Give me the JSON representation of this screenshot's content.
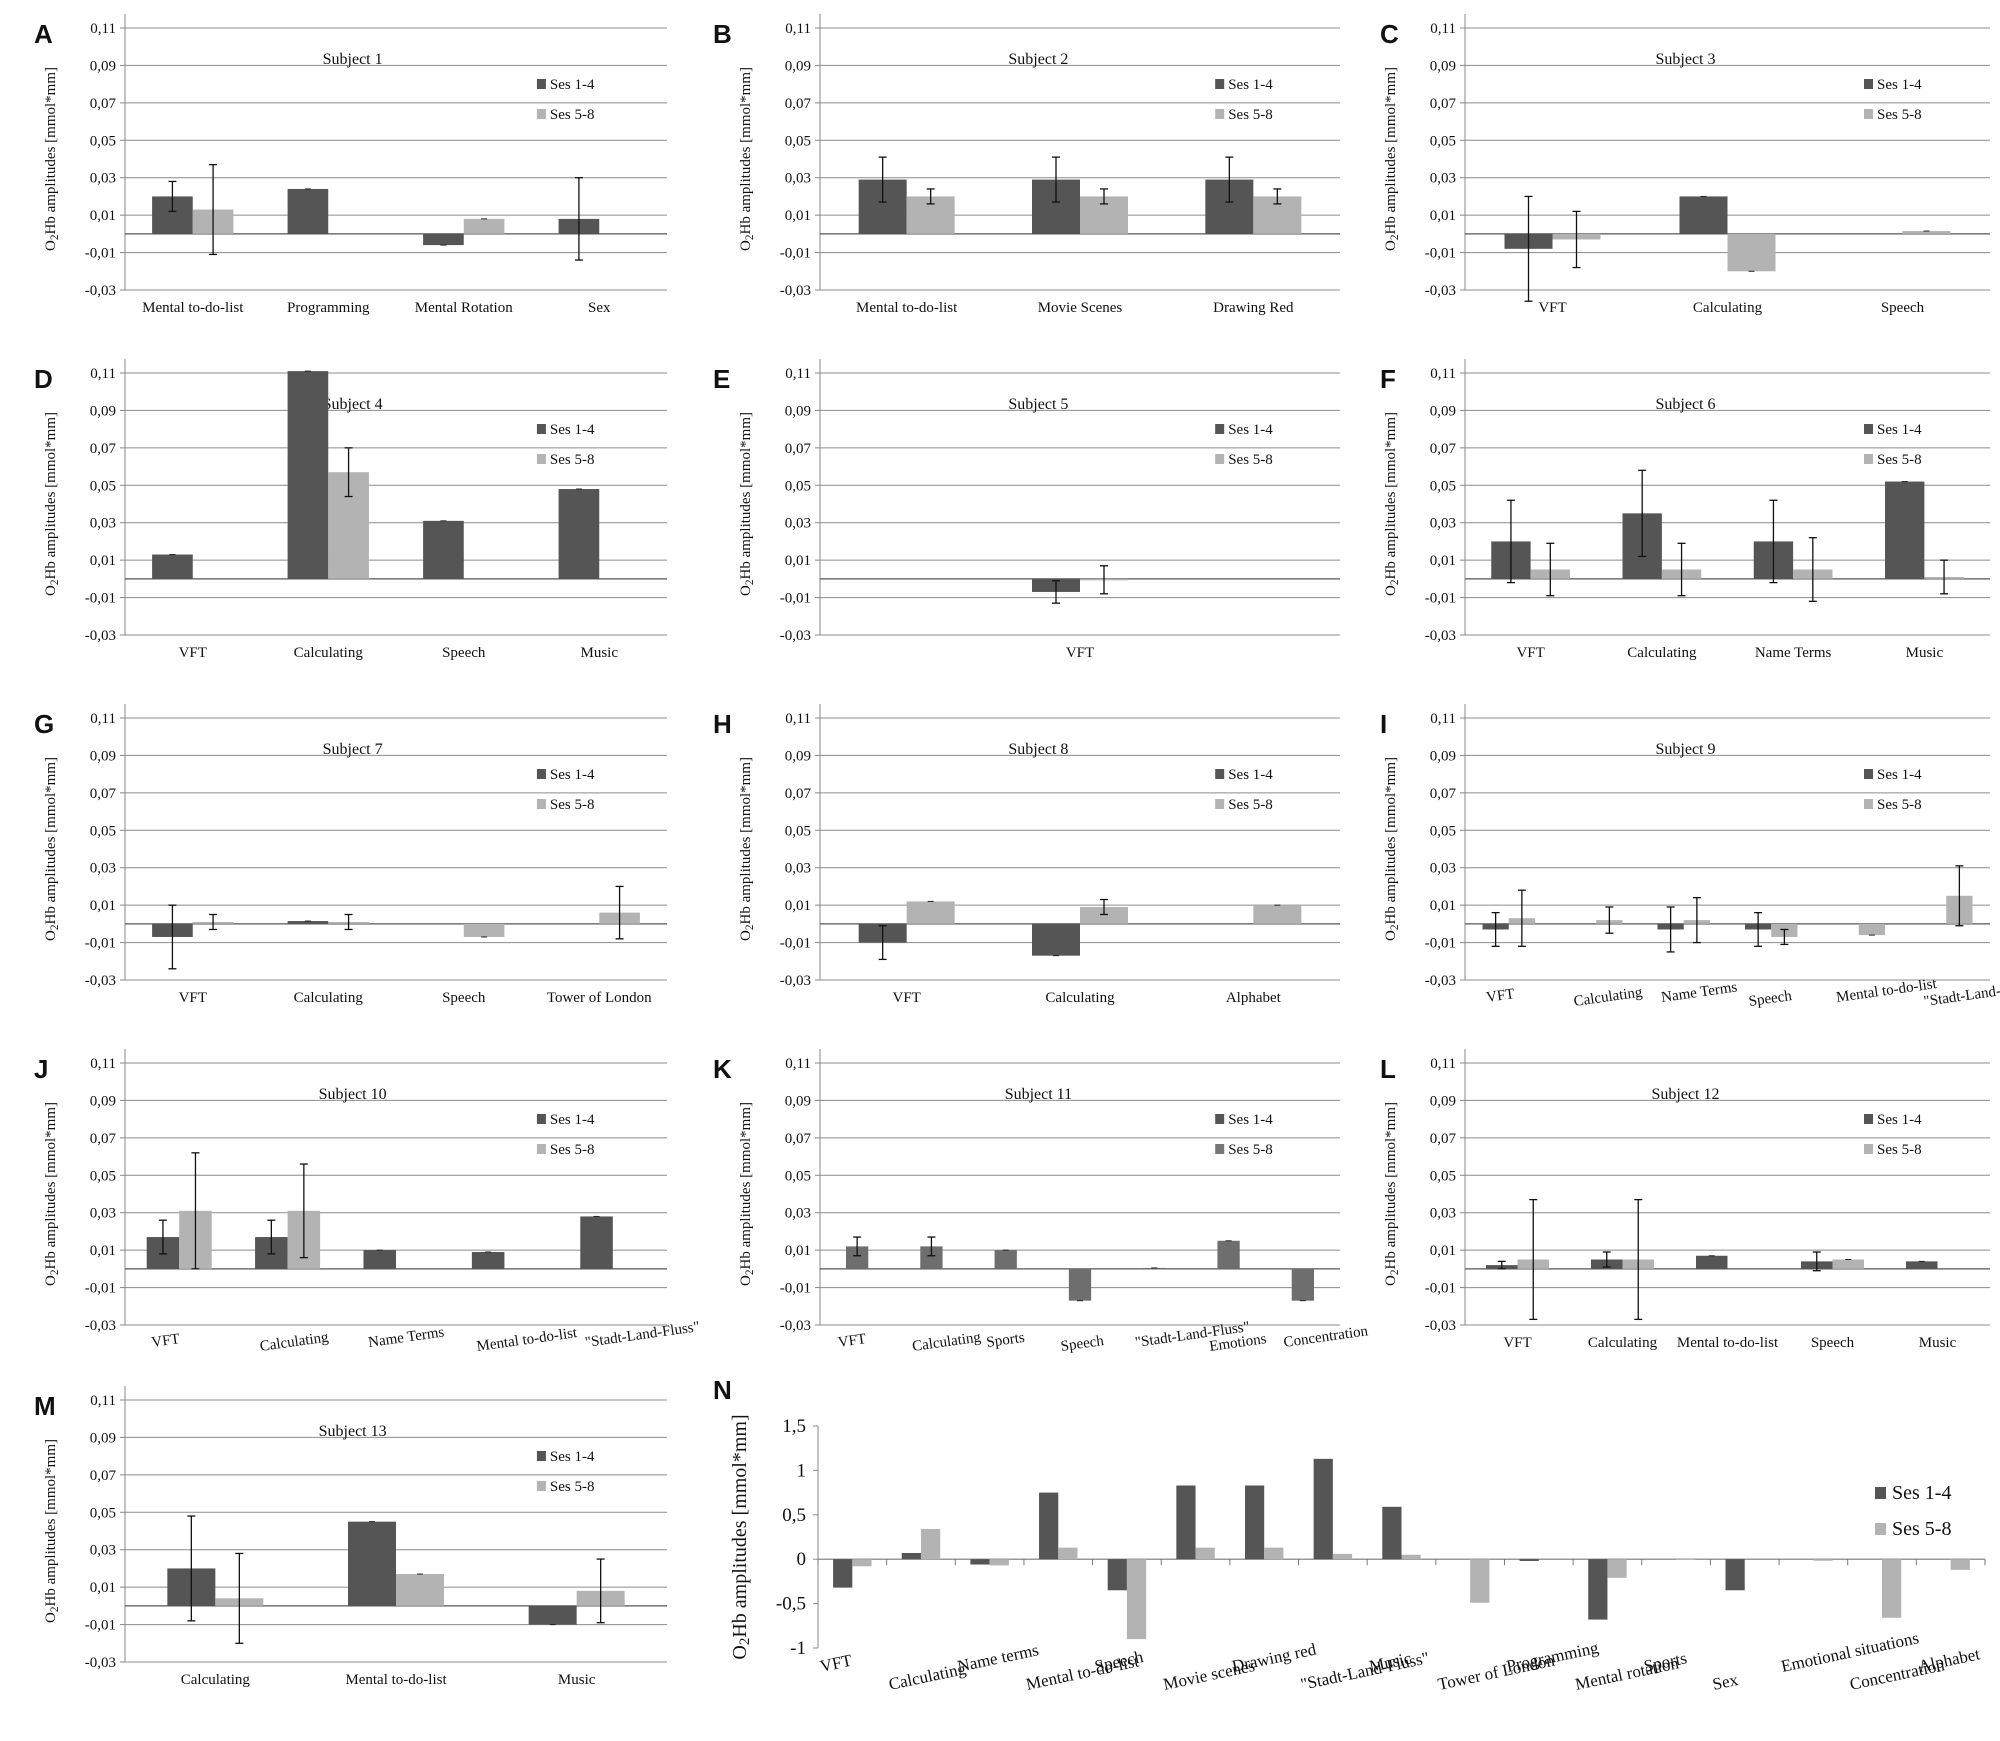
{
  "figure": {
    "colors": {
      "ses14": "#555555",
      "ses58": "#b3b3b3",
      "grid": "#8c8c8c",
      "axis": "#888888"
    },
    "panel_letters": [
      "A",
      "B",
      "C",
      "D",
      "E",
      "F",
      "G",
      "H",
      "I",
      "J",
      "K",
      "L",
      "M",
      "N"
    ]
  },
  "chart_data": [
    {
      "letter": "A",
      "type": "bar",
      "title": "Subject 1",
      "ylabel": "O2Hb amplitudes  [mmol*mm]",
      "ylim": [
        -0.03,
        0.11
      ],
      "yticks": [
        "0,11",
        "0,09",
        "0,07",
        "0,05",
        "0,03",
        "0,01",
        "-0,01",
        "-0,03"
      ],
      "categories": [
        "Mental to-do-list",
        "Programming",
        "Mental Rotation",
        "Sex"
      ],
      "series": [
        {
          "name": "Ses 1-4",
          "color": "ses14",
          "values": [
            0.02,
            0.024,
            -0.006,
            0.008
          ],
          "errors": [
            0.008,
            0,
            0,
            0.022
          ]
        },
        {
          "name": "Ses 5-8",
          "color": "ses58",
          "values": [
            0.013,
            null,
            0.008,
            null
          ],
          "errors": [
            0.024,
            0,
            0,
            0
          ]
        }
      ]
    },
    {
      "letter": "B",
      "type": "bar",
      "title": "Subject 2",
      "ylabel": "O2Hb amplitudes  [mmol*mm]",
      "ylim": [
        -0.03,
        0.11
      ],
      "yticks": [
        "0,11",
        "0,09",
        "0,07",
        "0,05",
        "0,03",
        "0,01",
        "-0,01",
        "-0,03"
      ],
      "categories": [
        "Mental to-do-list",
        "Movie Scenes",
        "Drawing Red"
      ],
      "series": [
        {
          "name": "Ses 1-4",
          "color": "ses14",
          "values": [
            0.029,
            0.029,
            0.029
          ],
          "errors": [
            0.012,
            0.012,
            0.012
          ]
        },
        {
          "name": "Ses 5-8",
          "color": "ses58",
          "values": [
            0.02,
            0.02,
            0.02
          ],
          "errors": [
            0.004,
            0.004,
            0.004
          ]
        }
      ]
    },
    {
      "letter": "C",
      "type": "bar",
      "title": "Subject 3",
      "ylabel": "O2Hb amplitudes  [mmol*mm]",
      "ylim": [
        -0.03,
        0.11
      ],
      "yticks": [
        "0,11",
        "0,09",
        "0,07",
        "0,05",
        "0,03",
        "0,01",
        "-0,01",
        "-0,03"
      ],
      "categories": [
        "VFT",
        "Calculating",
        "Speech"
      ],
      "series": [
        {
          "name": "Ses 1-4",
          "color": "ses14",
          "values": [
            -0.008,
            0.02,
            null
          ],
          "errors": [
            0.028,
            0,
            0
          ]
        },
        {
          "name": "Ses 5-8",
          "color": "ses58",
          "values": [
            -0.003,
            -0.02,
            0.0015
          ],
          "errors": [
            0.015,
            0,
            0
          ]
        }
      ]
    },
    {
      "letter": "D",
      "type": "bar",
      "title": "Subject 4",
      "ylabel": "O2Hb amplitudes  [mmol*mm]",
      "ylim": [
        -0.03,
        0.11
      ],
      "yticks": [
        "0,11",
        "0,09",
        "0,07",
        "0,05",
        "0,03",
        "0,01",
        "-0,01",
        "-0,03"
      ],
      "categories": [
        "VFT",
        "Calculating",
        "Speech",
        "Music"
      ],
      "series": [
        {
          "name": "Ses 1-4",
          "color": "ses14",
          "values": [
            0.013,
            0.111,
            0.031,
            0.048
          ],
          "errors": [
            0,
            0,
            0,
            0
          ]
        },
        {
          "name": "Ses 5-8",
          "color": "ses58",
          "values": [
            null,
            0.057,
            null,
            null
          ],
          "errors": [
            0,
            0.013,
            0,
            0
          ]
        }
      ]
    },
    {
      "letter": "E",
      "type": "bar",
      "title": "Subject 5",
      "ylabel": "O2Hb amplitudes  [mmol*mm]",
      "ylim": [
        -0.03,
        0.11
      ],
      "yticks": [
        "0,11",
        "0,09",
        "0,07",
        "0,05",
        "0,03",
        "0,01",
        "-0,01",
        "-0,03"
      ],
      "categories": [
        "VFT"
      ],
      "series": [
        {
          "name": "Ses 1-4",
          "color": "ses14",
          "values": [
            -0.007
          ],
          "errors": [
            0.006
          ]
        },
        {
          "name": "Ses 5-8",
          "color": "ses58",
          "values": [
            -0.0005
          ],
          "errors": [
            0.0075
          ]
        }
      ]
    },
    {
      "letter": "F",
      "type": "bar",
      "title": "Subject 6",
      "ylabel": "O2Hb amplitudes  [mmol*mm]",
      "ylim": [
        -0.03,
        0.11
      ],
      "yticks": [
        "0,11",
        "0,09",
        "0,07",
        "0,05",
        "0,03",
        "0,01",
        "-0,01",
        "-0,03"
      ],
      "categories": [
        "VFT",
        "Calculating",
        "Name Terms",
        "Music"
      ],
      "series": [
        {
          "name": "Ses 1-4",
          "color": "ses14",
          "values": [
            0.02,
            0.035,
            0.02,
            0.052
          ],
          "errors": [
            0.022,
            0.023,
            0.022,
            0
          ]
        },
        {
          "name": "Ses 5-8",
          "color": "ses58",
          "values": [
            0.005,
            0.005,
            0.005,
            0.001
          ],
          "errors": [
            0.014,
            0.014,
            0.017,
            0.009
          ]
        }
      ]
    },
    {
      "letter": "G",
      "type": "bar",
      "title": "Subject 7",
      "ylabel": "O2Hb amplitudes  [mmol*mm]",
      "ylim": [
        -0.03,
        0.11
      ],
      "yticks": [
        "0,11",
        "0,09",
        "0,07",
        "0,05",
        "0,03",
        "0,01",
        "-0,01",
        "-0,03"
      ],
      "categories": [
        "VFT",
        "Calculating",
        "Speech",
        "Tower of London"
      ],
      "series": [
        {
          "name": "Ses 1-4",
          "color": "ses14",
          "values": [
            -0.007,
            0.0015,
            null,
            null
          ],
          "errors": [
            0.017,
            0,
            0,
            0
          ]
        },
        {
          "name": "Ses 5-8",
          "color": "ses58",
          "values": [
            0.001,
            0.001,
            -0.007,
            0.006
          ],
          "errors": [
            0.004,
            0.004,
            0,
            0.014
          ]
        }
      ]
    },
    {
      "letter": "H",
      "type": "bar",
      "title": "Subject 8",
      "ylabel": "O2Hb amplitudes  [mmol*mm]",
      "ylim": [
        -0.03,
        0.11
      ],
      "yticks": [
        "0,11",
        "0,09",
        "0,07",
        "0,05",
        "0,03",
        "0,01",
        "-0,01",
        "-0,03"
      ],
      "categories": [
        "VFT",
        "Calculating",
        "Alphabet"
      ],
      "series": [
        {
          "name": "Ses 1-4",
          "color": "ses14",
          "values": [
            -0.01,
            -0.017,
            null
          ],
          "errors": [
            0.009,
            0,
            0
          ]
        },
        {
          "name": "Ses 5-8",
          "color": "ses58",
          "values": [
            0.012,
            0.009,
            0.01
          ],
          "errors": [
            0,
            0.004,
            0
          ]
        }
      ]
    },
    {
      "letter": "I",
      "type": "bar",
      "title": "Subject 9",
      "ylabel": "O2Hb amplitudes  [mmol*mm]",
      "ylim": [
        -0.03,
        0.11
      ],
      "yticks": [
        "0,11",
        "0,09",
        "0,07",
        "0,05",
        "0,03",
        "0,01",
        "-0,01",
        "-0,03"
      ],
      "categories": [
        "VFT",
        "Calculating",
        "Name Terms",
        "Speech",
        "Mental to-do-list",
        "\"Stadt-Land-Fluss\""
      ],
      "tilt_labels": true,
      "series": [
        {
          "name": "Ses 1-4",
          "color": "ses14",
          "values": [
            -0.003,
            null,
            -0.003,
            -0.003,
            null,
            null
          ],
          "errors": [
            0.009,
            0,
            0.012,
            0.009,
            0,
            0
          ]
        },
        {
          "name": "Ses 5-8",
          "color": "ses58",
          "values": [
            0.003,
            0.002,
            0.002,
            -0.007,
            -0.006,
            0.015
          ],
          "errors": [
            0.015,
            0.007,
            0.012,
            0.004,
            0,
            0.016
          ]
        }
      ]
    },
    {
      "letter": "J",
      "type": "bar",
      "title": "Subject 10",
      "ylabel": "O2Hb amplitudes  [mmol*mm]",
      "ylim": [
        -0.03,
        0.11
      ],
      "yticks": [
        "0,11",
        "0,09",
        "0,07",
        "0,05",
        "0,03",
        "0,01",
        "-0,01",
        "-0,03"
      ],
      "categories": [
        "VFT",
        "Calculating",
        "Name Terms",
        "Mental to-do-list",
        "\"Stadt-Land-Fluss\""
      ],
      "tilt_labels": true,
      "series": [
        {
          "name": "Ses 1-4",
          "color": "ses14",
          "values": [
            0.017,
            0.017,
            0.01,
            0.009,
            0.028
          ],
          "errors": [
            0.009,
            0.009,
            0,
            0,
            0
          ]
        },
        {
          "name": "Ses 5-8",
          "color": "ses58",
          "values": [
            0.031,
            0.031,
            null,
            null,
            null
          ],
          "errors": [
            0.031,
            0.025,
            0,
            0,
            0
          ]
        }
      ]
    },
    {
      "letter": "K",
      "type": "bar",
      "title": "Subject 11",
      "ylabel": "O2Hb amplitudes  [mmol*mm]",
      "ylim": [
        -0.03,
        0.11
      ],
      "yticks": [
        "0,11",
        "0,09",
        "0,07",
        "0,05",
        "0,03",
        "0,01",
        "-0,01",
        "-0,03"
      ],
      "categories": [
        "VFT",
        "Calculating",
        "Sports",
        "Speech",
        "\"Stadt-Land-Fluss\"",
        "Emotions",
        "Concentration"
      ],
      "tilt_labels": true,
      "single_series": true,
      "series": [
        {
          "name": "Ses 1-4",
          "color": "ses14",
          "values": [
            0.012,
            0.012,
            0.01,
            -0.017,
            0.0005,
            0.015,
            -0.017
          ],
          "errors": [
            0.005,
            0.005,
            0,
            0,
            0,
            0,
            0
          ]
        },
        {
          "name": "Ses 5-8",
          "color": "ses58",
          "values": [
            null,
            null,
            null,
            null,
            null,
            null,
            null
          ],
          "errors": [
            0,
            0,
            0,
            0,
            0,
            0,
            0
          ]
        }
      ]
    },
    {
      "letter": "L",
      "type": "bar",
      "title": "Subject 12",
      "ylabel": "O2Hb amplitudes  [mmol*mm]",
      "ylim": [
        -0.03,
        0.11
      ],
      "yticks": [
        "0,11",
        "0,09",
        "0,07",
        "0,05",
        "0,03",
        "0,01",
        "-0,01",
        "-0,03"
      ],
      "categories": [
        "VFT",
        "Calculating",
        "Mental to-do-list",
        "Speech",
        "Music"
      ],
      "series": [
        {
          "name": "Ses 1-4",
          "color": "ses14",
          "values": [
            0.002,
            0.005,
            0.007,
            0.004,
            0.004
          ],
          "errors": [
            0.002,
            0.004,
            0,
            0.005,
            0
          ]
        },
        {
          "name": "Ses 5-8",
          "color": "ses58",
          "values": [
            0.005,
            0.005,
            null,
            0.005,
            null
          ],
          "errors": [
            0.032,
            0.032,
            0,
            0,
            0
          ]
        }
      ]
    },
    {
      "letter": "M",
      "type": "bar",
      "title": "Subject 13",
      "ylabel": "O2Hb amplitudes  [mmol*mm]",
      "ylim": [
        -0.03,
        0.11
      ],
      "yticks": [
        "0,11",
        "0,09",
        "0,07",
        "0,05",
        "0,03",
        "0,01",
        "-0,01",
        "-0,03"
      ],
      "categories": [
        "Calculating",
        "Mental to-do-list",
        "Music"
      ],
      "series": [
        {
          "name": "Ses 1-4",
          "color": "ses14",
          "values": [
            0.02,
            0.045,
            -0.01
          ],
          "errors": [
            0.028,
            0,
            0
          ]
        },
        {
          "name": "Ses 5-8",
          "color": "ses58",
          "values": [
            0.004,
            0.017,
            0.008
          ],
          "errors": [
            0.024,
            0,
            0.017
          ]
        }
      ]
    },
    {
      "letter": "N",
      "type": "bar",
      "title": "",
      "ylabel": "O2Hb amplitudes [mmol*mm]",
      "ylim": [
        -1,
        1.5
      ],
      "yticks": [
        "1,5",
        "1",
        "0,5",
        "0",
        "-0,5",
        "-1"
      ],
      "categories": [
        "VFT",
        "Calculating",
        "Name terms",
        "Mental to-do-list",
        "Speech",
        "Movie scenes",
        "Drawing red",
        "\"Stadt-Land-Fluss\"",
        "Music",
        "Tower of London",
        "Programming",
        "Mental rotation",
        "Sports",
        "Sex",
        "Emotional situations",
        "Concentration",
        "Alphabet"
      ],
      "tilt_labels": true,
      "series": [
        {
          "name": "Ses 1-4",
          "color": "ses14",
          "values": [
            -0.32,
            0.07,
            -0.06,
            0.75,
            -0.35,
            0.83,
            0.83,
            1.13,
            0.59,
            null,
            -0.02,
            -0.68,
            null,
            -0.35,
            null,
            null,
            null
          ],
          "errors": []
        },
        {
          "name": "Ses 5-8",
          "color": "ses58",
          "values": [
            -0.08,
            0.34,
            -0.07,
            0.13,
            -0.9,
            0.13,
            0.13,
            0.06,
            0.05,
            -0.49,
            null,
            -0.21,
            0.01,
            null,
            -0.01,
            -0.66,
            -0.12
          ],
          "errors": []
        }
      ]
    }
  ]
}
